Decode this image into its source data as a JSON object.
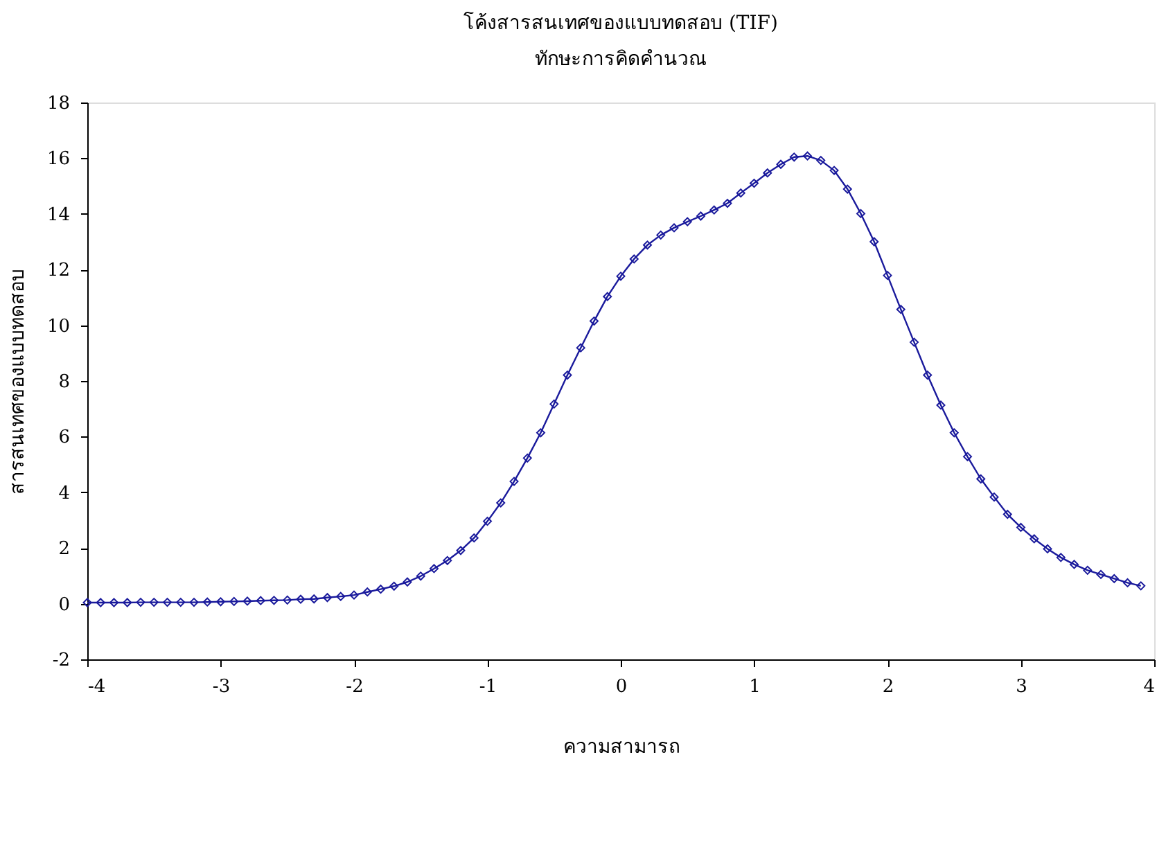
{
  "chart_data": {
    "type": "line",
    "title": "โค้งสารสนเทศของแบบทดสอบ (TIF)",
    "subtitle": "ทักษะการคิดคำนวณ",
    "xlabel": "ความสามารถ",
    "ylabel": "สารสนเทศของแบบทดสอบ",
    "x": [
      -4,
      -3.9,
      -3.8,
      -3.7,
      -3.6,
      -3.5,
      -3.4,
      -3.3,
      -3.2,
      -3.1,
      -3,
      -2.9,
      -2.8,
      -2.7,
      -2.6,
      -2.5,
      -2.4,
      -2.3,
      -2.2,
      -2.1,
      -2,
      -1.9,
      -1.8,
      -1.7,
      -1.6,
      -1.5,
      -1.4,
      -1.3,
      -1.2,
      -1.1,
      -1,
      -0.9,
      -0.8,
      -0.7,
      -0.6,
      -0.5,
      -0.4,
      -0.3,
      -0.2,
      -0.1,
      0,
      0.1,
      0.2,
      0.3,
      0.4,
      0.5,
      0.6,
      0.7,
      0.8,
      0.9,
      1,
      1.1,
      1.2,
      1.3,
      1.4,
      1.5,
      1.6,
      1.7,
      1.8,
      1.9,
      2,
      2.1,
      2.2,
      2.3,
      2.4,
      2.5,
      2.6,
      2.7,
      2.8,
      2.9,
      3,
      3.1,
      3.2,
      3.3,
      3.4,
      3.5,
      3.6,
      3.7,
      3.8,
      3.9
    ],
    "series": [
      {
        "color": "#1a1a9c",
        "values": [
          0.04,
          0.04,
          0.04,
          0.04,
          0.05,
          0.05,
          0.05,
          0.05,
          0.05,
          0.06,
          0.07,
          0.08,
          0.09,
          0.11,
          0.12,
          0.13,
          0.16,
          0.17,
          0.22,
          0.26,
          0.31,
          0.42,
          0.52,
          0.63,
          0.78,
          0.99,
          1.26,
          1.55,
          1.91,
          2.36,
          2.96,
          3.62,
          4.39,
          5.23,
          6.14,
          7.17,
          8.21,
          9.19,
          10.15,
          11.03,
          11.76,
          12.38,
          12.88,
          13.24,
          13.5,
          13.72,
          13.92,
          14.14,
          14.38,
          14.75,
          15.1,
          15.47,
          15.78,
          16.04,
          16.08,
          15.92,
          15.56,
          14.89,
          14.01,
          13.0,
          11.79,
          10.57,
          9.39,
          8.21,
          7.13,
          6.14,
          5.28,
          4.48,
          3.83,
          3.21,
          2.74,
          2.33,
          1.97,
          1.66,
          1.41,
          1.2,
          1.05,
          0.9,
          0.75,
          0.64
        ]
      }
    ],
    "xlim": [
      -4,
      4
    ],
    "xticks": [
      -4,
      -3,
      -2,
      -1,
      0,
      1,
      2,
      3,
      4
    ],
    "ylim": [
      -2,
      18
    ],
    "yticks": [
      -2,
      0,
      2,
      4,
      6,
      8,
      10,
      12,
      14,
      16,
      18
    ],
    "grid": false,
    "marker": "diamond",
    "line_style": "solid"
  }
}
